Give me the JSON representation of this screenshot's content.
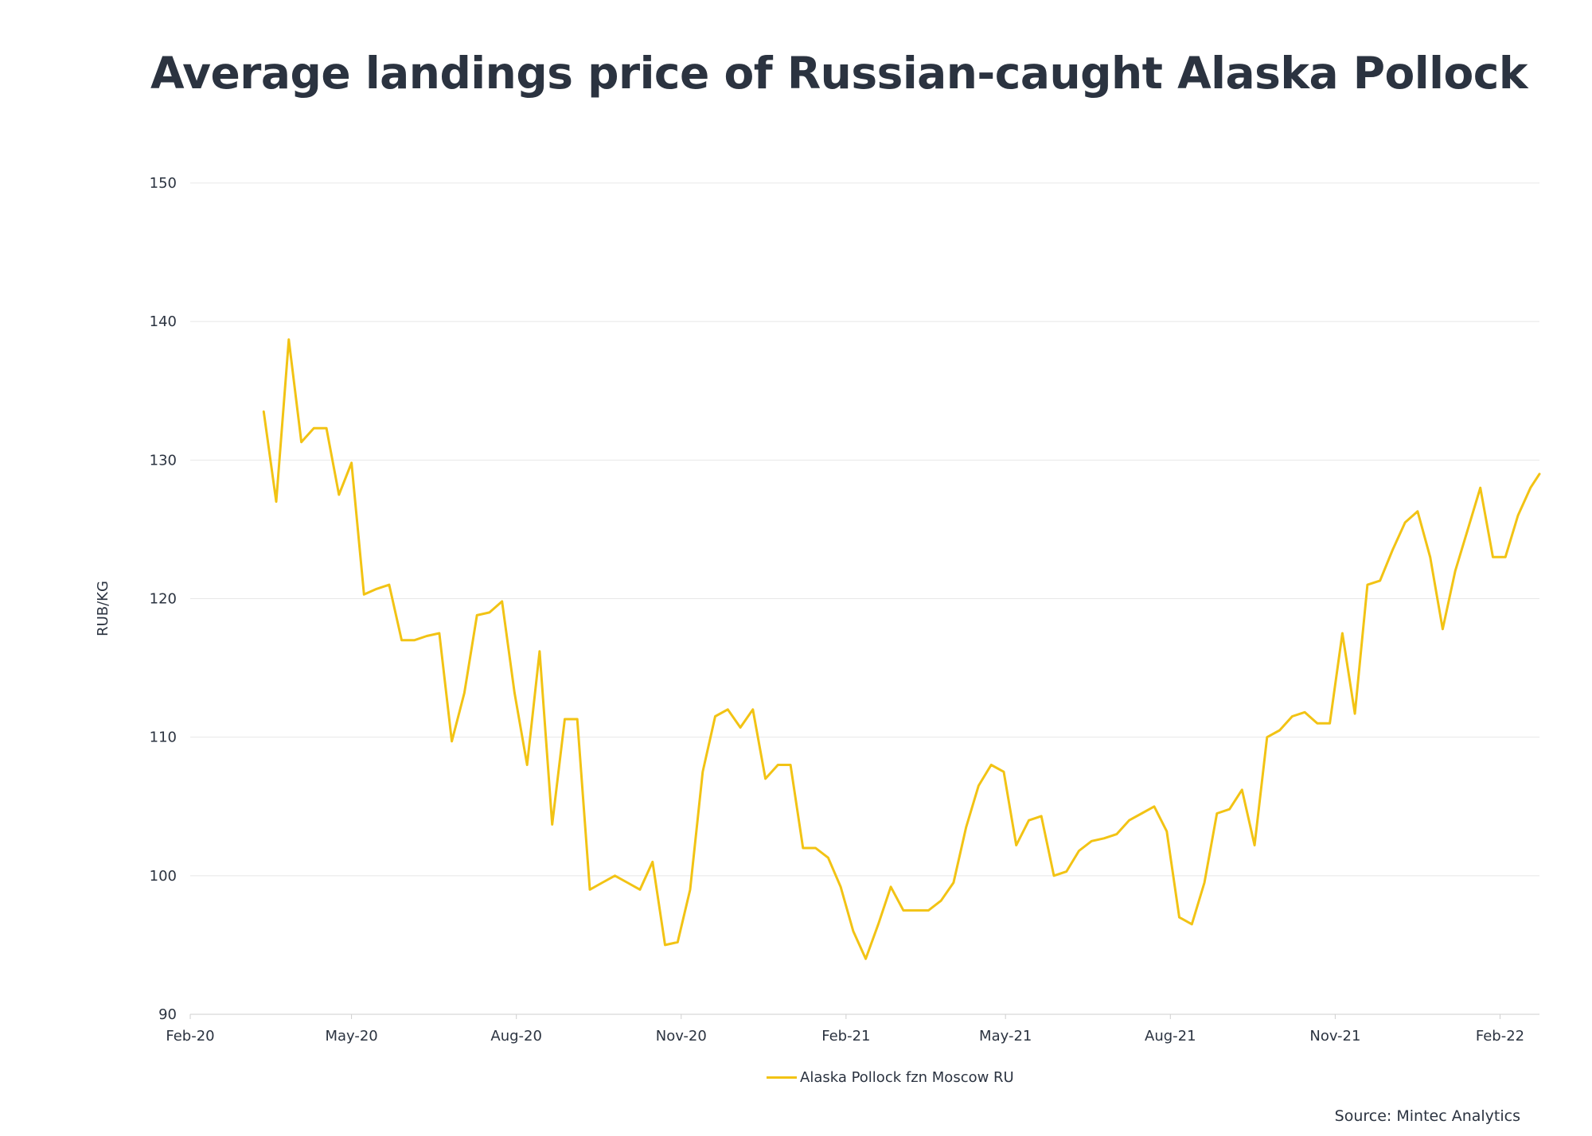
{
  "title": "Average landings price of Russian-caught Alaska Pollock",
  "source": "Source: Mintec Analytics",
  "colors": {
    "series": "#f2c314",
    "text": "#2b3340",
    "grid": "#e8e8e8"
  },
  "chart_data": {
    "type": "line",
    "title": "Average landings price of Russian-caught Alaska Pollock",
    "xlabel": "",
    "ylabel": "RUB/KG",
    "ylim": [
      90,
      150
    ],
    "xlim": [
      "2020-02-01",
      "2022-02-23"
    ],
    "yticks": [
      90,
      100,
      110,
      120,
      130,
      140,
      150
    ],
    "xticks": [
      {
        "date": "2020-02-01",
        "label": "Feb-20"
      },
      {
        "date": "2020-05-01",
        "label": "May-20"
      },
      {
        "date": "2020-08-01",
        "label": "Aug-20"
      },
      {
        "date": "2020-11-01",
        "label": "Nov-20"
      },
      {
        "date": "2021-02-01",
        "label": "Feb-21"
      },
      {
        "date": "2021-05-01",
        "label": "May-21"
      },
      {
        "date": "2021-08-01",
        "label": "Aug-21"
      },
      {
        "date": "2021-11-01",
        "label": "Nov-21"
      },
      {
        "date": "2022-02-01",
        "label": "Feb-22"
      }
    ],
    "grid": "horizontal",
    "legend_position": "bottom-center",
    "series": [
      {
        "name": "Alaska Pollock fzn Moscow RU",
        "x": [
          "2020-03-13",
          "2020-03-20",
          "2020-03-27",
          "2020-04-03",
          "2020-04-10",
          "2020-04-17",
          "2020-04-24",
          "2020-05-01",
          "2020-05-08",
          "2020-05-15",
          "2020-05-22",
          "2020-05-29",
          "2020-06-05",
          "2020-06-12",
          "2020-06-19",
          "2020-06-26",
          "2020-07-03",
          "2020-07-10",
          "2020-07-17",
          "2020-07-24",
          "2020-07-31",
          "2020-08-07",
          "2020-08-14",
          "2020-08-21",
          "2020-08-28",
          "2020-09-04",
          "2020-09-11",
          "2020-09-18",
          "2020-09-25",
          "2020-10-02",
          "2020-10-09",
          "2020-10-16",
          "2020-10-23",
          "2020-10-30",
          "2020-11-06",
          "2020-11-13",
          "2020-11-20",
          "2020-11-27",
          "2020-12-04",
          "2020-12-11",
          "2020-12-18",
          "2020-12-25",
          "2021-01-01",
          "2021-01-08",
          "2021-01-15",
          "2021-01-22",
          "2021-01-29",
          "2021-02-05",
          "2021-02-12",
          "2021-02-19",
          "2021-02-26",
          "2021-03-05",
          "2021-03-12",
          "2021-03-19",
          "2021-03-26",
          "2021-04-02",
          "2021-04-09",
          "2021-04-16",
          "2021-04-23",
          "2021-04-30",
          "2021-05-07",
          "2021-05-14",
          "2021-05-21",
          "2021-05-28",
          "2021-06-04",
          "2021-06-11",
          "2021-06-18",
          "2021-06-25",
          "2021-07-02",
          "2021-07-09",
          "2021-07-16",
          "2021-07-23",
          "2021-07-30",
          "2021-08-06",
          "2021-08-13",
          "2021-08-20",
          "2021-08-27",
          "2021-09-03",
          "2021-09-10",
          "2021-09-17",
          "2021-09-24",
          "2021-10-01",
          "2021-10-08",
          "2021-10-15",
          "2021-10-22",
          "2021-10-29",
          "2021-11-05",
          "2021-11-12",
          "2021-11-19",
          "2021-11-26",
          "2021-12-03",
          "2021-12-10",
          "2021-12-17",
          "2021-12-24",
          "2021-12-31",
          "2022-01-07",
          "2022-01-14",
          "2022-01-21",
          "2022-01-28",
          "2022-02-04",
          "2022-02-11",
          "2022-02-18",
          "2022-02-23"
        ],
        "values": [
          133.5,
          127.0,
          138.7,
          131.3,
          132.3,
          132.3,
          127.5,
          129.8,
          120.3,
          120.7,
          121.0,
          117.0,
          117.0,
          117.3,
          117.5,
          109.7,
          113.2,
          118.8,
          119.0,
          119.8,
          113.2,
          108.0,
          116.2,
          103.7,
          111.3,
          111.3,
          99.0,
          99.5,
          100.0,
          99.5,
          99.0,
          101.0,
          95.0,
          95.2,
          99.0,
          107.5,
          111.5,
          112.0,
          110.7,
          112.0,
          107.0,
          108.0,
          108.0,
          102.0,
          102.0,
          101.3,
          99.2,
          96.0,
          94.0,
          96.5,
          99.2,
          97.5,
          97.5,
          97.5,
          98.2,
          99.5,
          103.5,
          106.5,
          108.0,
          107.5,
          102.2,
          104.0,
          104.3,
          100.0,
          100.3,
          101.8,
          102.5,
          102.7,
          103.0,
          104.0,
          104.5,
          105.0,
          103.2,
          97.0,
          96.5,
          99.5,
          104.5,
          104.8,
          106.2,
          102.2,
          110.0,
          110.5,
          111.5,
          111.8,
          111.0,
          111.0,
          117.5,
          111.7,
          121.0,
          121.3,
          123.5,
          125.5,
          126.3,
          123.0,
          117.8,
          122.0,
          125.0,
          128.0,
          123.0,
          123.0,
          126.0,
          128.0,
          129.0
        ]
      }
    ]
  }
}
